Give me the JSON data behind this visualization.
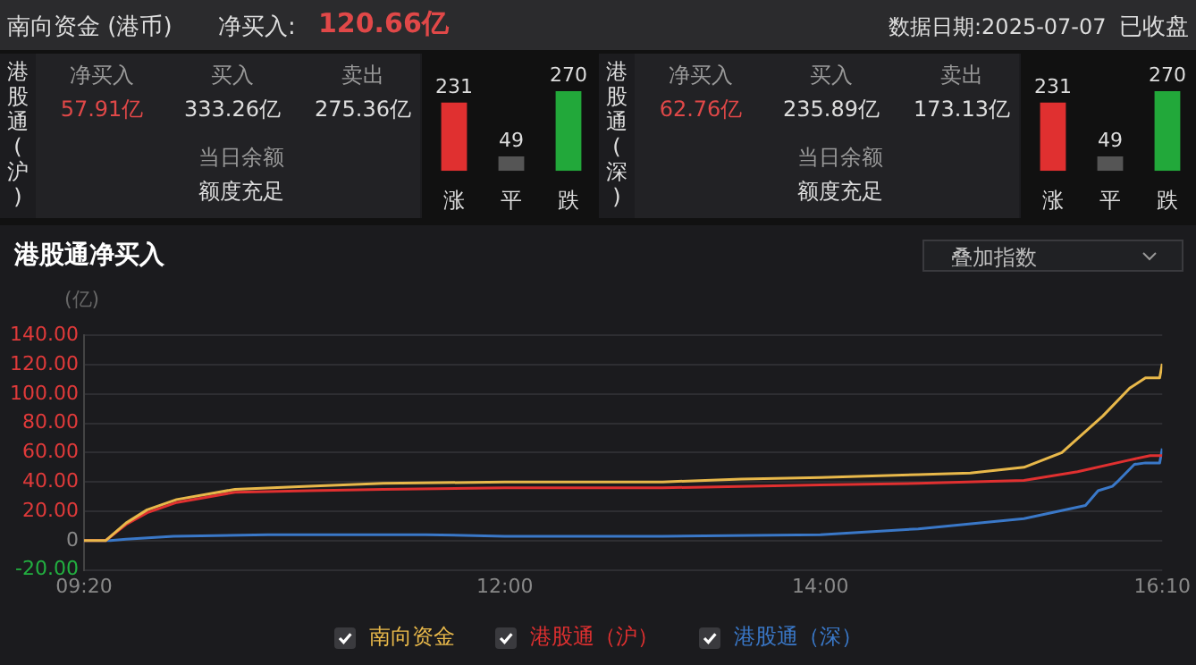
{
  "chart_data": [
    {
      "type": "other",
      "title": "南向资金 (港币)",
      "annotations": [
        "净买入:",
        "120.66亿",
        "数据日期:2025-07-07",
        "已收盘"
      ]
    },
    {
      "type": "other",
      "title": "港股通(沪)",
      "annotations": [
        "净买入",
        "57.91亿",
        "买入",
        "333.26亿",
        "卖出",
        "275.36亿",
        "当日余额",
        "额度充足"
      ]
    },
    {
      "type": "bar",
      "categories": [
        "涨",
        "平",
        "跌"
      ],
      "values": [
        231,
        49,
        270
      ],
      "colors": [
        "#e03030",
        "#555555",
        "#22a83a"
      ],
      "data_labels": true
    },
    {
      "type": "other",
      "title": "港股通(深)",
      "annotations": [
        "净买入",
        "62.76亿",
        "买入",
        "235.89亿",
        "卖出",
        "173.13亿",
        "当日余额",
        "额度充足"
      ]
    },
    {
      "type": "bar",
      "categories": [
        "涨",
        "平",
        "跌"
      ],
      "values": [
        231,
        49,
        270
      ],
      "colors": [
        "#e03030",
        "#555555",
        "#22a83a"
      ],
      "data_labels": true
    },
    {
      "type": "line",
      "title": "港股通净买入",
      "ylabel": "(亿)",
      "annotations": [
        "叠加指数"
      ],
      "xlim": [
        9.3333,
        16.1667
      ],
      "xticks": [
        {
          "value": 9.3333,
          "label": "09:20"
        },
        {
          "value": 12,
          "label": "12:00"
        },
        {
          "value": 14,
          "label": "14:00"
        },
        {
          "value": 16.1667,
          "label": "16:10"
        }
      ],
      "ylim": [
        -20,
        140
      ],
      "yticks": [
        {
          "value": -20,
          "label": "-20.00"
        },
        0,
        {
          "value": 20,
          "label": "20.00"
        },
        {
          "value": 40,
          "label": "40.00"
        },
        {
          "value": 60,
          "label": "60.00"
        },
        {
          "value": 80,
          "label": "80.00"
        },
        {
          "value": 100,
          "label": "100.00"
        },
        {
          "value": 120,
          "label": "120.00"
        },
        {
          "value": 140,
          "label": "140.00"
        }
      ],
      "grid": "y",
      "legend": "bottom",
      "marker": "none",
      "line_style": "solid",
      "series": [
        {
          "name": "南向资金",
          "color": "#e8b84a",
          "x": [
            9.3333,
            9.47,
            9.6,
            9.733,
            9.92,
            10.29,
            10.76,
            11.23,
            12,
            13,
            13.5,
            14,
            14.28,
            14.62,
            14.95,
            15.29,
            15.53,
            15.79,
            15.96,
            16.06,
            16.15,
            16.1667
          ],
          "values": [
            0,
            0,
            12,
            21,
            28,
            35,
            37,
            39,
            40,
            40,
            42,
            43,
            44,
            45,
            46,
            50,
            60,
            85,
            104,
            111,
            111,
            120.66
          ]
        },
        {
          "name": "港股通（沪）",
          "color": "#e03030",
          "x": [
            9.3333,
            9.47,
            9.6,
            9.733,
            9.92,
            10.29,
            10.76,
            11.23,
            12,
            13,
            14,
            14.62,
            15.29,
            15.63,
            15.96,
            16.09,
            16.15,
            16.1667
          ],
          "values": [
            0,
            0,
            11,
            19,
            26,
            33,
            34,
            35,
            36,
            36,
            38,
            39,
            41,
            47,
            55,
            58,
            58,
            57.91
          ]
        },
        {
          "name": "港股通（深）",
          "color": "#3a78c8",
          "x": [
            9.3333,
            9.5,
            9.6,
            9.9,
            10.5,
            11.5,
            12,
            13,
            14,
            14.62,
            15.29,
            15.68,
            15.76,
            15.85,
            15.89,
            15.99,
            16.06,
            16.15,
            16.1667
          ],
          "values": [
            0,
            0,
            1,
            3,
            4,
            4,
            3,
            3,
            4,
            8,
            15,
            24,
            34,
            37,
            41,
            52,
            53,
            53,
            62.76
          ]
        }
      ]
    }
  ]
}
